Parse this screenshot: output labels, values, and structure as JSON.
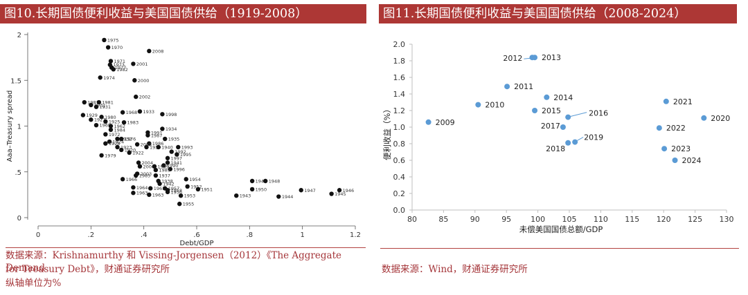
{
  "left": {
    "title": "图10.长期国债便利收益与美国国债供给（1919-2008）",
    "source_line1": "数据来源：Krishnamurthy 和 Vissing-Jorgensen（2012）《The Aggregate Demand",
    "source_line2": "for Treasury Debt》，财通证券研究所",
    "note": "纵轴单位为%"
  },
  "right": {
    "title": "图11.长期国债便利收益与美国国债供给（2008-2024）",
    "source": "数据来源：Wind，财通证券研究所"
  },
  "chart_data": [
    {
      "type": "scatter",
      "xlabel": "Debt/GDP",
      "ylabel": "Aaa–Treasury spread",
      "xlim": [
        0,
        1.2
      ],
      "ylim": [
        0,
        2
      ],
      "xticks": [
        "0",
        ".2",
        ".4",
        ".6",
        ".8",
        "1",
        "1.2"
      ],
      "yticks": [
        "0",
        ".5",
        "1",
        "1.5",
        "2"
      ],
      "grid": false,
      "points": [
        {
          "x": 0.25,
          "y": 1.94,
          "label": "1975"
        },
        {
          "x": 0.265,
          "y": 1.86,
          "label": "1970"
        },
        {
          "x": 0.42,
          "y": 1.82,
          "label": "2008"
        },
        {
          "x": 0.275,
          "y": 1.71,
          "label": "1971"
        },
        {
          "x": 0.272,
          "y": 1.67,
          "label": "1973"
        },
        {
          "x": 0.36,
          "y": 1.68,
          "label": "2001"
        },
        {
          "x": 0.278,
          "y": 1.64,
          "label": "1977"
        },
        {
          "x": 0.285,
          "y": 1.62,
          "label": "1982"
        },
        {
          "x": 0.235,
          "y": 1.53,
          "label": "1974"
        },
        {
          "x": 0.365,
          "y": 1.5,
          "label": "2000"
        },
        {
          "x": 0.37,
          "y": 1.32,
          "label": "2002"
        },
        {
          "x": 0.175,
          "y": 1.26,
          "label": "1981"
        },
        {
          "x": 0.23,
          "y": 1.26,
          "label": "1981"
        },
        {
          "x": 0.2,
          "y": 1.23,
          "label": "1931"
        },
        {
          "x": 0.22,
          "y": 1.21,
          "label": "1931"
        },
        {
          "x": 0.385,
          "y": 1.16,
          "label": "1933"
        },
        {
          "x": 0.32,
          "y": 1.15,
          "label": "1968"
        },
        {
          "x": 0.47,
          "y": 1.13,
          "label": "1998"
        },
        {
          "x": 0.17,
          "y": 1.12,
          "label": "1929"
        },
        {
          "x": 0.24,
          "y": 1.1,
          "label": "1980"
        },
        {
          "x": 0.2,
          "y": 1.07,
          "label": "1927"
        },
        {
          "x": 0.255,
          "y": 1.05,
          "label": "1925"
        },
        {
          "x": 0.325,
          "y": 1.04,
          "label": "1983"
        },
        {
          "x": 0.22,
          "y": 1.01,
          "label": "1969"
        },
        {
          "x": 0.275,
          "y": 1.0,
          "label": "1962"
        },
        {
          "x": 0.275,
          "y": 0.96,
          "label": "1984"
        },
        {
          "x": 0.47,
          "y": 0.97,
          "label": "1934"
        },
        {
          "x": 0.415,
          "y": 0.93,
          "label": "1991"
        },
        {
          "x": 0.415,
          "y": 0.9,
          "label": "1987"
        },
        {
          "x": 0.255,
          "y": 0.91,
          "label": "1972"
        },
        {
          "x": 0.48,
          "y": 0.86,
          "label": "1935"
        },
        {
          "x": 0.3,
          "y": 0.86,
          "label": "1932"
        },
        {
          "x": 0.315,
          "y": 0.86,
          "label": "1976"
        },
        {
          "x": 0.27,
          "y": 0.83,
          "label": "1924"
        },
        {
          "x": 0.255,
          "y": 0.81,
          "label": "1928"
        },
        {
          "x": 0.42,
          "y": 0.81,
          "label": "1986"
        },
        {
          "x": 0.375,
          "y": 0.8,
          "label": "2005"
        },
        {
          "x": 0.3,
          "y": 0.77,
          "label": "1923"
        },
        {
          "x": 0.315,
          "y": 0.74,
          "label": "1920"
        },
        {
          "x": 0.41,
          "y": 0.77,
          "label": "1939"
        },
        {
          "x": 0.455,
          "y": 0.77,
          "label": "1940"
        },
        {
          "x": 0.53,
          "y": 0.77,
          "label": "1993"
        },
        {
          "x": 0.345,
          "y": 0.71,
          "label": "1922"
        },
        {
          "x": 0.24,
          "y": 0.68,
          "label": "1979"
        },
        {
          "x": 0.505,
          "y": 0.72,
          "label": "1992"
        },
        {
          "x": 0.525,
          "y": 0.69,
          "label": "1995"
        },
        {
          "x": 0.38,
          "y": 0.6,
          "label": "2004"
        },
        {
          "x": 0.49,
          "y": 0.65,
          "label": "1997"
        },
        {
          "x": 0.385,
          "y": 0.56,
          "label": "2006"
        },
        {
          "x": 0.49,
          "y": 0.6,
          "label": "1941"
        },
        {
          "x": 0.475,
          "y": 0.57,
          "label": "1990"
        },
        {
          "x": 0.5,
          "y": 0.53,
          "label": "1996"
        },
        {
          "x": 0.44,
          "y": 0.56,
          "label": "1999"
        },
        {
          "x": 0.375,
          "y": 0.48,
          "label": "2003"
        },
        {
          "x": 0.445,
          "y": 0.52,
          "label": "1989"
        },
        {
          "x": 0.37,
          "y": 0.46,
          "label": "1985"
        },
        {
          "x": 0.445,
          "y": 0.46,
          "label": "1937"
        },
        {
          "x": 0.32,
          "y": 0.42,
          "label": "1966"
        },
        {
          "x": 0.56,
          "y": 0.42,
          "label": "1954"
        },
        {
          "x": 0.455,
          "y": 0.4,
          "label": "1938"
        },
        {
          "x": 0.46,
          "y": 0.37,
          "label": "1942"
        },
        {
          "x": 0.565,
          "y": 0.34,
          "label": "1952"
        },
        {
          "x": 0.36,
          "y": 0.33,
          "label": "1964"
        },
        {
          "x": 0.425,
          "y": 0.32,
          "label": "1961"
        },
        {
          "x": 0.48,
          "y": 0.32,
          "label": "1957"
        },
        {
          "x": 0.49,
          "y": 0.3,
          "label": "1958"
        },
        {
          "x": 0.49,
          "y": 0.28,
          "label": "1956"
        },
        {
          "x": 0.36,
          "y": 0.27,
          "label": "1963"
        },
        {
          "x": 0.42,
          "y": 0.25,
          "label": "1963"
        },
        {
          "x": 0.605,
          "y": 0.31,
          "label": "1951"
        },
        {
          "x": 0.54,
          "y": 0.24,
          "label": "1953"
        },
        {
          "x": 0.535,
          "y": 0.15,
          "label": "1955"
        },
        {
          "x": 0.81,
          "y": 0.4,
          "label": "1947"
        },
        {
          "x": 0.86,
          "y": 0.4,
          "label": "1948"
        },
        {
          "x": 0.81,
          "y": 0.31,
          "label": "1950"
        },
        {
          "x": 0.75,
          "y": 0.24,
          "label": "1943"
        },
        {
          "x": 0.91,
          "y": 0.23,
          "label": "1944"
        },
        {
          "x": 0.995,
          "y": 0.3,
          "label": "1947"
        },
        {
          "x": 1.14,
          "y": 0.3,
          "label": "1946"
        },
        {
          "x": 1.11,
          "y": 0.26,
          "label": "1945"
        }
      ]
    },
    {
      "type": "scatter",
      "xlabel": "未偿美国国债总额/GDP",
      "ylabel": "便利收益（%）",
      "xlim": [
        80,
        130
      ],
      "ylim": [
        0,
        2
      ],
      "xticks": [
        "80",
        "85",
        "90",
        "95",
        "100",
        "105",
        "110",
        "115",
        "120",
        "125",
        "130"
      ],
      "yticks": [
        "0.0",
        "0.2",
        "0.4",
        "0.6",
        "0.8",
        "1.0",
        "1.2",
        "1.4",
        "1.6",
        "1.8",
        "2.0"
      ],
      "grid": false,
      "points": [
        {
          "x": 82.6,
          "y": 1.06,
          "label": "2009"
        },
        {
          "x": 90.5,
          "y": 1.27,
          "label": "2010"
        },
        {
          "x": 95.1,
          "y": 1.49,
          "label": "2011"
        },
        {
          "x": 99.1,
          "y": 1.84,
          "label": "2012"
        },
        {
          "x": 99.5,
          "y": 1.84,
          "label": "2013"
        },
        {
          "x": 101.4,
          "y": 1.36,
          "label": "2014"
        },
        {
          "x": 99.5,
          "y": 1.2,
          "label": "2015"
        },
        {
          "x": 104.8,
          "y": 1.12,
          "label": "2016"
        },
        {
          "x": 104.0,
          "y": 1.0,
          "label": "2017"
        },
        {
          "x": 104.8,
          "y": 0.81,
          "label": "2018"
        },
        {
          "x": 105.9,
          "y": 0.82,
          "label": "2019"
        },
        {
          "x": 126.4,
          "y": 1.11,
          "label": "2020"
        },
        {
          "x": 120.4,
          "y": 1.31,
          "label": "2021"
        },
        {
          "x": 119.3,
          "y": 0.99,
          "label": "2022"
        },
        {
          "x": 120.1,
          "y": 0.74,
          "label": "2023"
        },
        {
          "x": 121.8,
          "y": 0.6,
          "label": "2024"
        }
      ]
    }
  ]
}
